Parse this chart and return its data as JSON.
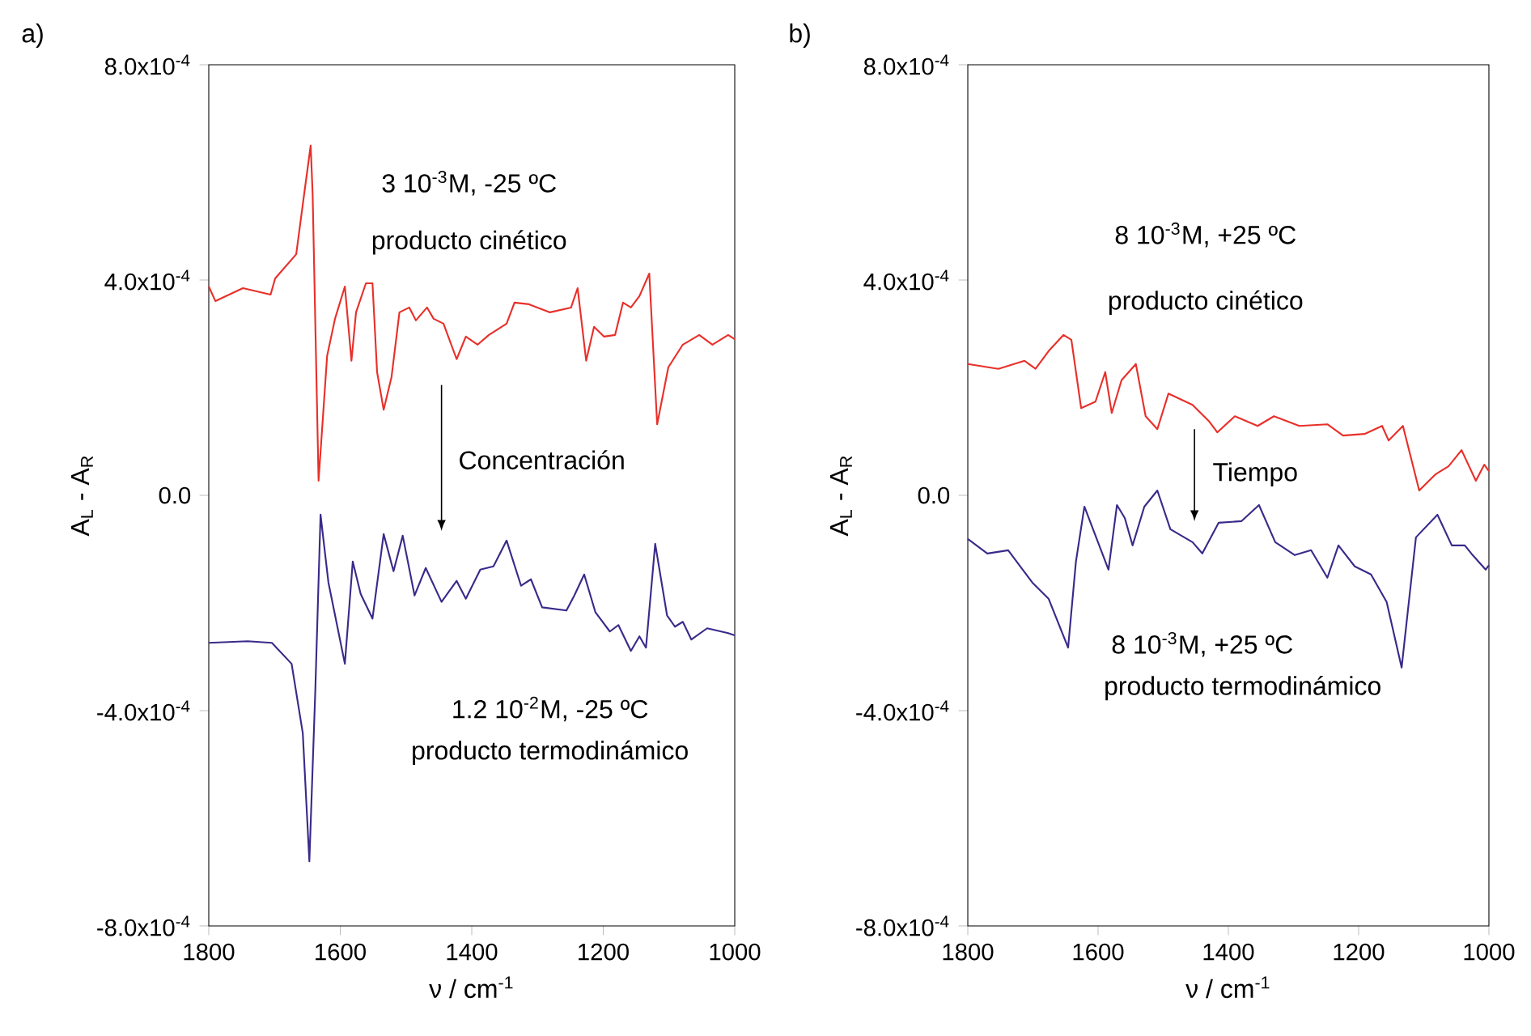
{
  "chart_data": [
    {
      "type": "line",
      "title": "a)",
      "xlabel": "ν / cm$^{-1}$",
      "ylabel": "A$_{L}$ - A$_{R}$",
      "xlim": [
        1800,
        1000
      ],
      "ylim": [
        -0.0008,
        0.0008
      ],
      "xticks": [
        1800,
        1600,
        1400,
        1200,
        1000
      ],
      "yticks": [
        {
          "value": -0.0008,
          "label": "-8.0x10$^{-4}$"
        },
        {
          "value": -0.0004,
          "label": "-4.0x10$^{-4}$"
        },
        {
          "value": 0,
          "label": "0.0"
        },
        {
          "value": 0.0004,
          "label": "4.0x10$^{-4}$"
        },
        {
          "value": 0.0008,
          "label": "8.0x10$^{-4}$"
        }
      ],
      "series": [
        {
          "color": "#e8302a",
          "x": [
            1800,
            1790,
            1748,
            1706,
            1699,
            1667,
            1655,
            1645,
            1642,
            1633,
            1620,
            1608,
            1593,
            1583,
            1576,
            1561,
            1551,
            1544,
            1534,
            1522,
            1510,
            1495,
            1485,
            1468,
            1458,
            1443,
            1423,
            1409,
            1391,
            1374,
            1347,
            1335,
            1313,
            1281,
            1249,
            1239,
            1226,
            1214,
            1199,
            1182,
            1170,
            1158,
            1145,
            1130,
            1118,
            1101,
            1079,
            1054,
            1034,
            1010,
            1000
          ],
          "values": [
            0.000388,
            0.000361,
            0.000385,
            0.000373,
            0.000403,
            0.000448,
            0.000559,
            0.00065,
            0.000559,
            2.7e-05,
            0.000259,
            0.000328,
            0.000388,
            0.00025,
            0.00034,
            0.000394,
            0.000394,
            0.000229,
            0.000159,
            0.00022,
            0.00034,
            0.000349,
            0.000325,
            0.000349,
            0.000328,
            0.000319,
            0.000253,
            0.000295,
            0.00028,
            0.000298,
            0.000319,
            0.000358,
            0.000355,
            0.00034,
            0.000349,
            0.000385,
            0.00025,
            0.000313,
            0.000295,
            0.000298,
            0.000358,
            0.000349,
            0.00037,
            0.000412,
            0.000132,
            0.000238,
            0.00028,
            0.000298,
            0.00028,
            0.000298,
            0.00029
          ]
        },
        {
          "color": "#3a2a8a",
          "x": [
            1800,
            1741,
            1704,
            1674,
            1657,
            1647,
            1638,
            1630,
            1618,
            1593,
            1581,
            1569,
            1551,
            1534,
            1519,
            1505,
            1487,
            1470,
            1446,
            1423,
            1409,
            1387,
            1367,
            1347,
            1325,
            1310,
            1293,
            1256,
            1244,
            1229,
            1212,
            1190,
            1177,
            1158,
            1145,
            1135,
            1121,
            1103,
            1091,
            1079,
            1066,
            1042,
            1010,
            1000
          ],
          "values": [
            -0.000274,
            -0.000271,
            -0.000274,
            -0.000313,
            -0.000442,
            -0.00068,
            -0.000364,
            -3.6e-05,
            -0.000162,
            -0.000313,
            -0.000123,
            -0.000183,
            -0.000229,
            -7.2e-05,
            -0.000141,
            -7.5e-05,
            -0.000186,
            -0.000135,
            -0.000198,
            -0.000159,
            -0.000192,
            -0.000138,
            -0.000132,
            -8.4e-05,
            -0.000168,
            -0.000156,
            -0.000208,
            -0.000214,
            -0.000186,
            -0.000147,
            -0.000217,
            -0.000253,
            -0.000241,
            -0.000289,
            -0.000262,
            -0.000283,
            -9e-05,
            -0.000223,
            -0.000244,
            -0.000235,
            -0.000268,
            -0.000247,
            -0.000256,
            -0.00026
          ]
        }
      ],
      "annotations": [
        "3 10$^{-3}$M, -25 ºC",
        "producto cinético",
        "Concentración",
        "1.2 10$^{-2}$M, -25 ºC",
        "producto termodinámico"
      ]
    },
    {
      "type": "line",
      "title": "b)",
      "xlabel": "ν / cm$^{-1}$",
      "ylabel": "A$_{L}$ - A$_{R}$",
      "xlim": [
        1800,
        1000
      ],
      "ylim": [
        -0.0008,
        0.0008
      ],
      "xticks": [
        1800,
        1600,
        1400,
        1200,
        1000
      ],
      "yticks": [
        {
          "value": -0.0008,
          "label": "-8.0x10$^{-4}$"
        },
        {
          "value": -0.0004,
          "label": "-4.0x10$^{-4}$"
        },
        {
          "value": 0,
          "label": "0.0"
        },
        {
          "value": 0.0004,
          "label": "4.0x10$^{-4}$"
        },
        {
          "value": 0.0008,
          "label": "8.0x10$^{-4}$"
        }
      ],
      "series": [
        {
          "color": "#e8302a",
          "x": [
            1800,
            1753,
            1713,
            1696,
            1676,
            1653,
            1641,
            1626,
            1604,
            1589,
            1579,
            1564,
            1542,
            1527,
            1509,
            1492,
            1455,
            1430,
            1417,
            1390,
            1355,
            1330,
            1291,
            1248,
            1224,
            1191,
            1164,
            1154,
            1132,
            1107,
            1082,
            1062,
            1042,
            1020,
            1007,
            1000
          ],
          "values": [
            0.000244,
            0.000235,
            0.00025,
            0.000235,
            0.000268,
            0.000298,
            0.000289,
            0.000162,
            0.000174,
            0.000229,
            0.000153,
            0.000214,
            0.000244,
            0.000147,
            0.000123,
            0.000189,
            0.000168,
            0.000138,
            0.000117,
            0.000147,
            0.000129,
            0.000147,
            0.000129,
            0.000132,
            0.000111,
            0.000114,
            0.000129,
            0.000102,
            0.000129,
            9e-06,
            3.9e-05,
            5.4e-05,
            8.4e-05,
            2.7e-05,
            5.7e-05,
            4.5e-05
          ]
        },
        {
          "color": "#3a2a8a",
          "x": [
            1800,
            1770,
            1738,
            1701,
            1676,
            1646,
            1634,
            1621,
            1584,
            1571,
            1559,
            1547,
            1529,
            1509,
            1489,
            1455,
            1440,
            1415,
            1380,
            1353,
            1328,
            1298,
            1273,
            1248,
            1231,
            1206,
            1181,
            1157,
            1134,
            1112,
            1079,
            1057,
            1037,
            1025,
            1005,
            1000
          ],
          "values": [
            -8.1e-05,
            -0.000108,
            -0.000102,
            -0.000162,
            -0.000192,
            -0.000283,
            -0.000123,
            -2.1e-05,
            -0.000138,
            -1.8e-05,
            -4.2e-05,
            -9.3e-05,
            -2.1e-05,
            9e-06,
            -6.3e-05,
            -8.7e-05,
            -0.000108,
            -5.1e-05,
            -4.8e-05,
            -1.8e-05,
            -8.7e-05,
            -0.000111,
            -0.000102,
            -0.000153,
            -9.3e-05,
            -0.000132,
            -0.000147,
            -0.000198,
            -0.00032,
            -7.8e-05,
            -3.6e-05,
            -9.3e-05,
            -9.3e-05,
            -0.000111,
            -0.000138,
            -0.00013
          ]
        }
      ],
      "annotations": [
        "8 10$^{-3}$M, +25 ºC",
        "producto cinético",
        "Tiempo",
        "8 10$^{-3}$M, +25 ºC",
        "producto termodinámico"
      ]
    }
  ]
}
